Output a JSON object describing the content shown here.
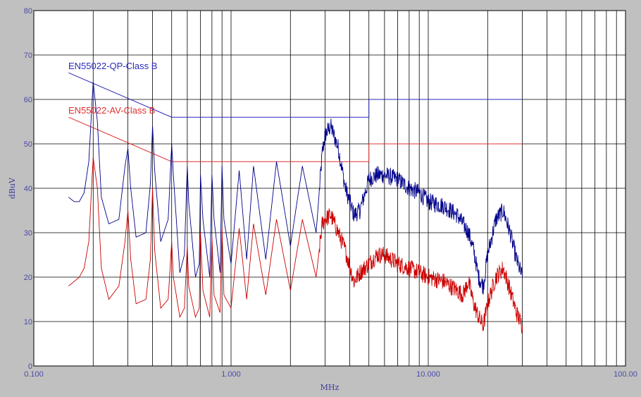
{
  "chart_data": {
    "type": "line",
    "title": "",
    "xlabel": "MHz",
    "ylabel": "dBuV",
    "x_scale": "log",
    "xlim": [
      0.1,
      100
    ],
    "ylim": [
      0,
      80
    ],
    "x_ticks": [
      "0.100",
      "1.000",
      "10.000",
      "100.00"
    ],
    "y_ticks": [
      "0",
      "10",
      "20",
      "30",
      "40",
      "50",
      "60",
      "70",
      "80"
    ],
    "grid": true,
    "limit_lines": [
      {
        "name": "EN55022-QP-Class B",
        "color": "#2a2ab8",
        "x": [
          0.15,
          0.5,
          0.5,
          5,
          5,
          30
        ],
        "y": [
          66,
          56,
          56,
          56,
          60,
          60
        ]
      },
      {
        "name": "EN55022-AV-Class B",
        "color": "#e03030",
        "x": [
          0.15,
          0.5,
          0.5,
          5,
          5,
          30
        ],
        "y": [
          56,
          46,
          46,
          46,
          50,
          50
        ]
      }
    ],
    "series": [
      {
        "color": "#00008b",
        "x": [
          0.15,
          0.16,
          0.17,
          0.18,
          0.19,
          0.2,
          0.21,
          0.22,
          0.24,
          0.27,
          0.29,
          0.3,
          0.31,
          0.33,
          0.37,
          0.39,
          0.4,
          0.41,
          0.44,
          0.48,
          0.5,
          0.51,
          0.55,
          0.58,
          0.6,
          0.61,
          0.66,
          0.69,
          0.7,
          0.72,
          0.78,
          0.8,
          0.82,
          0.88,
          0.9,
          0.92,
          1.0,
          1.1,
          1.2,
          1.3,
          1.5,
          1.7,
          2.0,
          2.3,
          2.7,
          2.9,
          3.0,
          3.2,
          3.5,
          3.8,
          4.2,
          4.5,
          5.0,
          5.5,
          6.0,
          7.0,
          8.0,
          9.0,
          10,
          12,
          14,
          15,
          16,
          17,
          18,
          19,
          20,
          22,
          24,
          26,
          28,
          30
        ],
        "y": [
          38,
          37,
          37,
          39,
          46,
          64,
          55,
          38,
          32,
          33,
          45,
          49,
          40,
          29,
          30,
          41,
          54,
          44,
          28,
          33,
          50,
          43,
          21,
          25,
          45,
          37,
          20,
          23,
          43,
          33,
          20,
          43,
          33,
          21,
          45,
          33,
          23,
          44,
          24,
          45,
          24,
          46,
          27,
          45,
          30,
          48,
          52,
          54,
          49,
          40,
          34,
          35,
          42,
          43,
          43,
          42,
          40,
          39,
          37,
          36,
          34,
          32,
          30,
          26,
          20,
          18,
          25,
          33,
          35,
          30,
          24,
          20
        ]
      },
      {
        "color": "#cc0000",
        "x": [
          0.15,
          0.16,
          0.17,
          0.18,
          0.19,
          0.2,
          0.21,
          0.22,
          0.24,
          0.27,
          0.29,
          0.3,
          0.31,
          0.33,
          0.37,
          0.39,
          0.4,
          0.41,
          0.44,
          0.48,
          0.5,
          0.51,
          0.55,
          0.58,
          0.6,
          0.61,
          0.66,
          0.69,
          0.7,
          0.72,
          0.78,
          0.8,
          0.82,
          0.88,
          0.9,
          0.92,
          1.0,
          1.1,
          1.2,
          1.3,
          1.5,
          1.7,
          2.0,
          2.3,
          2.7,
          2.9,
          3.0,
          3.2,
          3.5,
          3.8,
          4.2,
          4.5,
          5.0,
          5.5,
          6.0,
          7.0,
          8.0,
          9.0,
          10,
          12,
          14,
          15,
          16,
          17,
          18,
          19,
          20,
          22,
          24,
          26,
          28,
          30
        ],
        "y": [
          18,
          19,
          20,
          22,
          28,
          47,
          40,
          22,
          15,
          18,
          28,
          35,
          24,
          14,
          15,
          24,
          40,
          26,
          13,
          15,
          28,
          20,
          11,
          13,
          27,
          18,
          11,
          13,
          30,
          17,
          11,
          29,
          16,
          12,
          31,
          16,
          13,
          31,
          15,
          32,
          16,
          33,
          17,
          33,
          20,
          32,
          33,
          34,
          30,
          26,
          19,
          21,
          23,
          25,
          25,
          23,
          22,
          21,
          20,
          19,
          17,
          16,
          19,
          14,
          11,
          9,
          14,
          20,
          22,
          17,
          12,
          9
        ]
      }
    ]
  }
}
